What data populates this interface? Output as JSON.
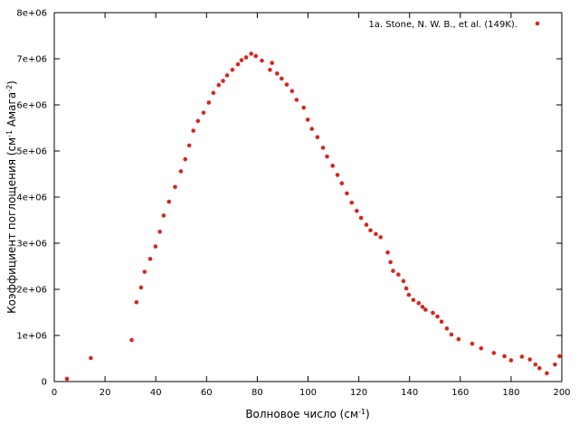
{
  "chart_data": {
    "type": "scatter",
    "xlabel": "Волновое число (см",
    "xlabel_sup": "-1",
    "xlabel_end": ")",
    "ylabel": "Коэффициент поглощения (см",
    "ylabel_sup1": "-1",
    "ylabel_mid": " Амага",
    "ylabel_sup2": "-2",
    "ylabel_end": ")",
    "xlim": [
      0,
      200
    ],
    "ylim": [
      0,
      8000000
    ],
    "x_ticks": [
      0,
      20,
      40,
      60,
      80,
      100,
      120,
      140,
      160,
      180,
      200
    ],
    "x_tick_labels": [
      "0",
      "20",
      "40",
      "60",
      "80",
      "100",
      "120",
      "140",
      "160",
      "180",
      "200"
    ],
    "y_ticks": [
      0,
      1000000,
      2000000,
      3000000,
      4000000,
      5000000,
      6000000,
      7000000,
      8000000
    ],
    "y_tick_labels": [
      "0",
      "1e+06",
      "2e+06",
      "3e+06",
      "4e+06",
      "5e+06",
      "6e+06",
      "7e+06",
      "8e+06"
    ],
    "grid": false,
    "legend_position": "top-right",
    "series": [
      {
        "name": "1a. Stone, N. W. B., et al. (149K).",
        "color": "#d7261e",
        "points": [
          [
            5,
            60000
          ],
          [
            14.4,
            510000
          ],
          [
            30.5,
            900000
          ],
          [
            32.4,
            1720000
          ],
          [
            34.2,
            2040000
          ],
          [
            35.6,
            2380000
          ],
          [
            37.8,
            2660000
          ],
          [
            39.9,
            2930000
          ],
          [
            41.6,
            3250000
          ],
          [
            43.1,
            3600000
          ],
          [
            45.2,
            3900000
          ],
          [
            47.6,
            4220000
          ],
          [
            49.9,
            4560000
          ],
          [
            51.6,
            4820000
          ],
          [
            53.2,
            5120000
          ],
          [
            54.8,
            5440000
          ],
          [
            56.6,
            5650000
          ],
          [
            58.8,
            5830000
          ],
          [
            60.9,
            6050000
          ],
          [
            62.7,
            6260000
          ],
          [
            64.8,
            6430000
          ],
          [
            66.5,
            6520000
          ],
          [
            68.1,
            6640000
          ],
          [
            70.2,
            6760000
          ],
          [
            72.4,
            6880000
          ],
          [
            73.8,
            6970000
          ],
          [
            75.6,
            7030000
          ],
          [
            77.6,
            7110000
          ],
          [
            79.4,
            7060000
          ],
          [
            81.8,
            6960000
          ],
          [
            85.0,
            6760000
          ],
          [
            85.8,
            6910000
          ],
          [
            87.8,
            6680000
          ],
          [
            89.6,
            6570000
          ],
          [
            91.6,
            6440000
          ],
          [
            93.7,
            6300000
          ],
          [
            95.5,
            6110000
          ],
          [
            98.3,
            5940000
          ],
          [
            99.9,
            5680000
          ],
          [
            101.5,
            5480000
          ],
          [
            103.7,
            5300000
          ],
          [
            105.9,
            5070000
          ],
          [
            107.5,
            4880000
          ],
          [
            109.7,
            4680000
          ],
          [
            111.6,
            4480000
          ],
          [
            113.3,
            4300000
          ],
          [
            115.3,
            4080000
          ],
          [
            117.2,
            3880000
          ],
          [
            119.2,
            3700000
          ],
          [
            120.9,
            3550000
          ],
          [
            123.0,
            3400000
          ],
          [
            124.6,
            3280000
          ],
          [
            126.7,
            3200000
          ],
          [
            128.6,
            3130000
          ],
          [
            131.4,
            2800000
          ],
          [
            132.5,
            2590000
          ],
          [
            133.5,
            2400000
          ],
          [
            135.6,
            2320000
          ],
          [
            137.6,
            2180000
          ],
          [
            138.7,
            2020000
          ],
          [
            139.7,
            1880000
          ],
          [
            141.5,
            1770000
          ],
          [
            143.6,
            1700000
          ],
          [
            145.1,
            1620000
          ],
          [
            146.3,
            1560000
          ],
          [
            149.2,
            1490000
          ],
          [
            151.0,
            1410000
          ],
          [
            152.6,
            1300000
          ],
          [
            154.7,
            1150000
          ],
          [
            156.5,
            1020000
          ],
          [
            159.3,
            920000
          ],
          [
            164.7,
            820000
          ],
          [
            168.2,
            720000
          ],
          [
            173.2,
            620000
          ],
          [
            177.4,
            550000
          ],
          [
            180.0,
            460000
          ],
          [
            184.3,
            540000
          ],
          [
            187.4,
            480000
          ],
          [
            189.6,
            370000
          ],
          [
            191.2,
            290000
          ],
          [
            194.1,
            180000
          ],
          [
            197.3,
            370000
          ],
          [
            199.1,
            550000
          ]
        ]
      }
    ]
  }
}
